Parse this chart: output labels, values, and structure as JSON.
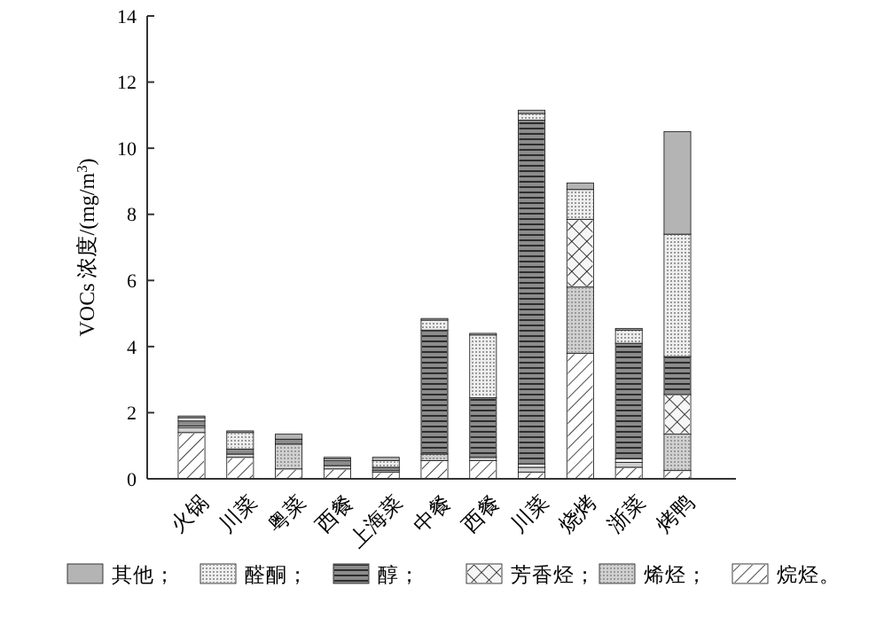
{
  "chart_data": {
    "type": "bar",
    "stacked": true,
    "ylabel": "VOCs 浓度/(mg/m$^{3}$)",
    "categories": [
      "火锅",
      "川菜",
      "粤菜",
      "西餐",
      "上海菜",
      "中餐",
      "西餐",
      "川菜",
      "烧烤",
      "浙菜",
      "烤鸭"
    ],
    "series": [
      {
        "name": "烷烃。",
        "color": "#ffffff",
        "values": [
          1.4,
          0.65,
          0.3,
          0.3,
          0.2,
          0.55,
          0.55,
          0.2,
          3.8,
          0.35,
          0.25
        ]
      },
      {
        "name": "烯烃；",
        "color": "#d0d0d0",
        "values": [
          0.15,
          0.1,
          0.75,
          0.1,
          0.05,
          0.2,
          0.1,
          0.15,
          2.0,
          0.15,
          1.1
        ]
      },
      {
        "name": "芳香烃；",
        "color": "#f6f6f6",
        "values": [
          0.05,
          0,
          0,
          null,
          0,
          0,
          0,
          0.1,
          2.05,
          0.1,
          1.2
        ]
      },
      {
        "name": "醇；",
        "color": "#8c8c8c",
        "values": [
          0.15,
          0.15,
          0.15,
          0.15,
          0.1,
          3.75,
          1.8,
          10.4,
          0,
          3.5,
          1.15
        ]
      },
      {
        "name": "醛酮；",
        "color": "#eeeeee",
        "values": [
          0.1,
          0.5,
          0,
          0.05,
          0.2,
          0.3,
          1.9,
          0.2,
          0.9,
          0.4,
          3.7
        ]
      },
      {
        "name": "其他；",
        "color": "#b4b4b4",
        "values": [
          0.05,
          0.05,
          0.15,
          0.05,
          0.1,
          0.05,
          0.05,
          0.1,
          0.2,
          0.05,
          3.1
        ]
      }
    ],
    "ylim": [
      0,
      14
    ],
    "yticks": [
      0,
      2,
      4,
      6,
      8,
      10,
      12,
      14
    ],
    "grid": false,
    "legend": "bottom"
  }
}
